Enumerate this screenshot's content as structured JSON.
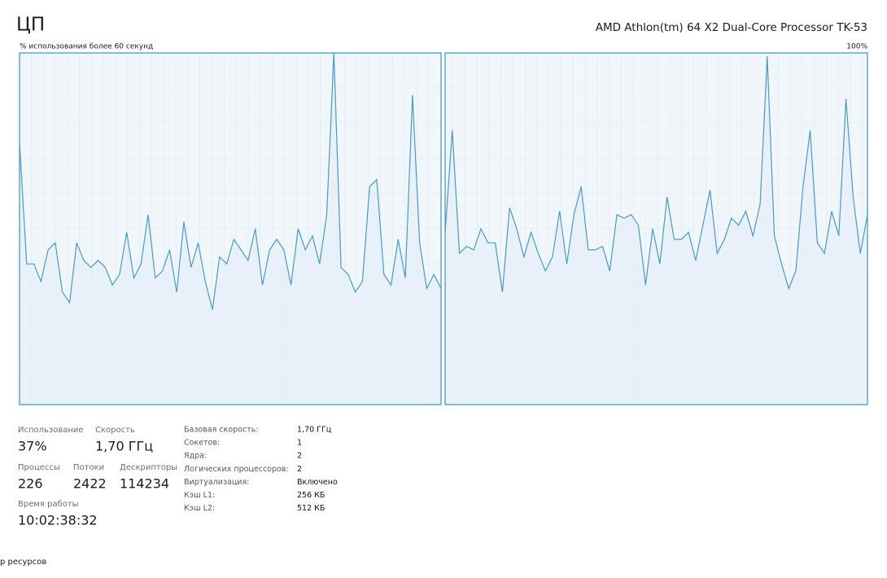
{
  "header": {
    "title": "ЦП",
    "processor": "AMD Athlon(tm) 64 X2 Dual-Core Processor TK-53",
    "subtitle": "% использования более 60 секунд"
  },
  "chart_data": [
    {
      "type": "line",
      "color": "#4b9ac4",
      "ylim": [
        0,
        100
      ],
      "values": [
        74.5,
        40,
        40,
        35,
        44,
        46,
        32,
        29,
        46,
        41,
        39,
        41,
        39,
        34,
        37,
        49,
        36,
        40,
        54,
        36,
        38,
        44,
        32,
        52,
        39,
        46,
        35,
        27,
        42,
        40,
        47,
        44,
        41,
        50,
        34,
        44,
        47,
        44,
        34,
        50,
        44,
        48,
        40,
        54,
        100,
        39,
        37,
        32,
        35,
        62,
        64,
        37,
        34,
        47,
        36,
        88,
        46,
        33,
        37,
        33
      ]
    },
    {
      "type": "line",
      "color": "#4b9ac4",
      "ylim": [
        0,
        100
      ],
      "yticks": [
        {
          "value": 100,
          "label": "100%"
        }
      ],
      "values": [
        49,
        78,
        43,
        45,
        44,
        50,
        46,
        46,
        32,
        56,
        50,
        42,
        49,
        43,
        38,
        42,
        55,
        40,
        54,
        62,
        44,
        44,
        45,
        38,
        54,
        53,
        54,
        51,
        34,
        50,
        40,
        59,
        47,
        47,
        49,
        41,
        51,
        61,
        43,
        47,
        53,
        51,
        55,
        48,
        57,
        99,
        48,
        40,
        33,
        38,
        62,
        78,
        46,
        43,
        55,
        48,
        87,
        59,
        43,
        54
      ]
    }
  ],
  "stats": [
    {
      "label": "Использование",
      "value": "37%"
    },
    {
      "label": "Скорость",
      "value": "1,70 ГГц"
    },
    {
      "label": "Процессы",
      "value": "226"
    },
    {
      "label": "Потоки",
      "value": "2422"
    },
    {
      "label": "Дескрипторы",
      "value": "114234"
    },
    {
      "label": "Время работы",
      "value": "10:02:38:32"
    }
  ],
  "details": [
    [
      "Базовая скорость:",
      "1,70 ГГц"
    ],
    [
      "Сокетов:",
      "1"
    ],
    [
      "Ядра:",
      "2"
    ],
    [
      "Логических процессоров:",
      "2"
    ],
    [
      "Виртуализация:",
      "Включено"
    ],
    [
      "Кэш L1:",
      "256 КБ"
    ],
    [
      "Кэш L2:",
      "512 КБ"
    ]
  ],
  "footer": {
    "link": "р ресурсов"
  }
}
